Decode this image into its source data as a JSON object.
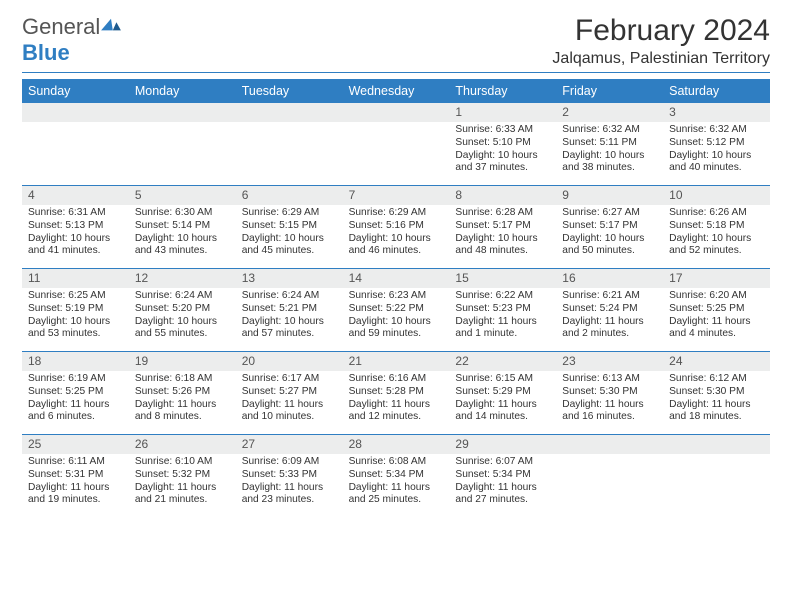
{
  "brand": {
    "name_a": "General",
    "name_b": "Blue"
  },
  "title": "February 2024",
  "location": "Jalqamus, Palestinian Territory",
  "header_bg": "#2f7ec2",
  "days_of_week": [
    "Sunday",
    "Monday",
    "Tuesday",
    "Wednesday",
    "Thursday",
    "Friday",
    "Saturday"
  ],
  "weeks": [
    [
      null,
      null,
      null,
      null,
      {
        "n": "1",
        "sr": "Sunrise: 6:33 AM",
        "ss": "Sunset: 5:10 PM",
        "dl": "Daylight: 10 hours and 37 minutes."
      },
      {
        "n": "2",
        "sr": "Sunrise: 6:32 AM",
        "ss": "Sunset: 5:11 PM",
        "dl": "Daylight: 10 hours and 38 minutes."
      },
      {
        "n": "3",
        "sr": "Sunrise: 6:32 AM",
        "ss": "Sunset: 5:12 PM",
        "dl": "Daylight: 10 hours and 40 minutes."
      }
    ],
    [
      {
        "n": "4",
        "sr": "Sunrise: 6:31 AM",
        "ss": "Sunset: 5:13 PM",
        "dl": "Daylight: 10 hours and 41 minutes."
      },
      {
        "n": "5",
        "sr": "Sunrise: 6:30 AM",
        "ss": "Sunset: 5:14 PM",
        "dl": "Daylight: 10 hours and 43 minutes."
      },
      {
        "n": "6",
        "sr": "Sunrise: 6:29 AM",
        "ss": "Sunset: 5:15 PM",
        "dl": "Daylight: 10 hours and 45 minutes."
      },
      {
        "n": "7",
        "sr": "Sunrise: 6:29 AM",
        "ss": "Sunset: 5:16 PM",
        "dl": "Daylight: 10 hours and 46 minutes."
      },
      {
        "n": "8",
        "sr": "Sunrise: 6:28 AM",
        "ss": "Sunset: 5:17 PM",
        "dl": "Daylight: 10 hours and 48 minutes."
      },
      {
        "n": "9",
        "sr": "Sunrise: 6:27 AM",
        "ss": "Sunset: 5:17 PM",
        "dl": "Daylight: 10 hours and 50 minutes."
      },
      {
        "n": "10",
        "sr": "Sunrise: 6:26 AM",
        "ss": "Sunset: 5:18 PM",
        "dl": "Daylight: 10 hours and 52 minutes."
      }
    ],
    [
      {
        "n": "11",
        "sr": "Sunrise: 6:25 AM",
        "ss": "Sunset: 5:19 PM",
        "dl": "Daylight: 10 hours and 53 minutes."
      },
      {
        "n": "12",
        "sr": "Sunrise: 6:24 AM",
        "ss": "Sunset: 5:20 PM",
        "dl": "Daylight: 10 hours and 55 minutes."
      },
      {
        "n": "13",
        "sr": "Sunrise: 6:24 AM",
        "ss": "Sunset: 5:21 PM",
        "dl": "Daylight: 10 hours and 57 minutes."
      },
      {
        "n": "14",
        "sr": "Sunrise: 6:23 AM",
        "ss": "Sunset: 5:22 PM",
        "dl": "Daylight: 10 hours and 59 minutes."
      },
      {
        "n": "15",
        "sr": "Sunrise: 6:22 AM",
        "ss": "Sunset: 5:23 PM",
        "dl": "Daylight: 11 hours and 1 minute."
      },
      {
        "n": "16",
        "sr": "Sunrise: 6:21 AM",
        "ss": "Sunset: 5:24 PM",
        "dl": "Daylight: 11 hours and 2 minutes."
      },
      {
        "n": "17",
        "sr": "Sunrise: 6:20 AM",
        "ss": "Sunset: 5:25 PM",
        "dl": "Daylight: 11 hours and 4 minutes."
      }
    ],
    [
      {
        "n": "18",
        "sr": "Sunrise: 6:19 AM",
        "ss": "Sunset: 5:25 PM",
        "dl": "Daylight: 11 hours and 6 minutes."
      },
      {
        "n": "19",
        "sr": "Sunrise: 6:18 AM",
        "ss": "Sunset: 5:26 PM",
        "dl": "Daylight: 11 hours and 8 minutes."
      },
      {
        "n": "20",
        "sr": "Sunrise: 6:17 AM",
        "ss": "Sunset: 5:27 PM",
        "dl": "Daylight: 11 hours and 10 minutes."
      },
      {
        "n": "21",
        "sr": "Sunrise: 6:16 AM",
        "ss": "Sunset: 5:28 PM",
        "dl": "Daylight: 11 hours and 12 minutes."
      },
      {
        "n": "22",
        "sr": "Sunrise: 6:15 AM",
        "ss": "Sunset: 5:29 PM",
        "dl": "Daylight: 11 hours and 14 minutes."
      },
      {
        "n": "23",
        "sr": "Sunrise: 6:13 AM",
        "ss": "Sunset: 5:30 PM",
        "dl": "Daylight: 11 hours and 16 minutes."
      },
      {
        "n": "24",
        "sr": "Sunrise: 6:12 AM",
        "ss": "Sunset: 5:30 PM",
        "dl": "Daylight: 11 hours and 18 minutes."
      }
    ],
    [
      {
        "n": "25",
        "sr": "Sunrise: 6:11 AM",
        "ss": "Sunset: 5:31 PM",
        "dl": "Daylight: 11 hours and 19 minutes."
      },
      {
        "n": "26",
        "sr": "Sunrise: 6:10 AM",
        "ss": "Sunset: 5:32 PM",
        "dl": "Daylight: 11 hours and 21 minutes."
      },
      {
        "n": "27",
        "sr": "Sunrise: 6:09 AM",
        "ss": "Sunset: 5:33 PM",
        "dl": "Daylight: 11 hours and 23 minutes."
      },
      {
        "n": "28",
        "sr": "Sunrise: 6:08 AM",
        "ss": "Sunset: 5:34 PM",
        "dl": "Daylight: 11 hours and 25 minutes."
      },
      {
        "n": "29",
        "sr": "Sunrise: 6:07 AM",
        "ss": "Sunset: 5:34 PM",
        "dl": "Daylight: 11 hours and 27 minutes."
      },
      null,
      null
    ]
  ]
}
